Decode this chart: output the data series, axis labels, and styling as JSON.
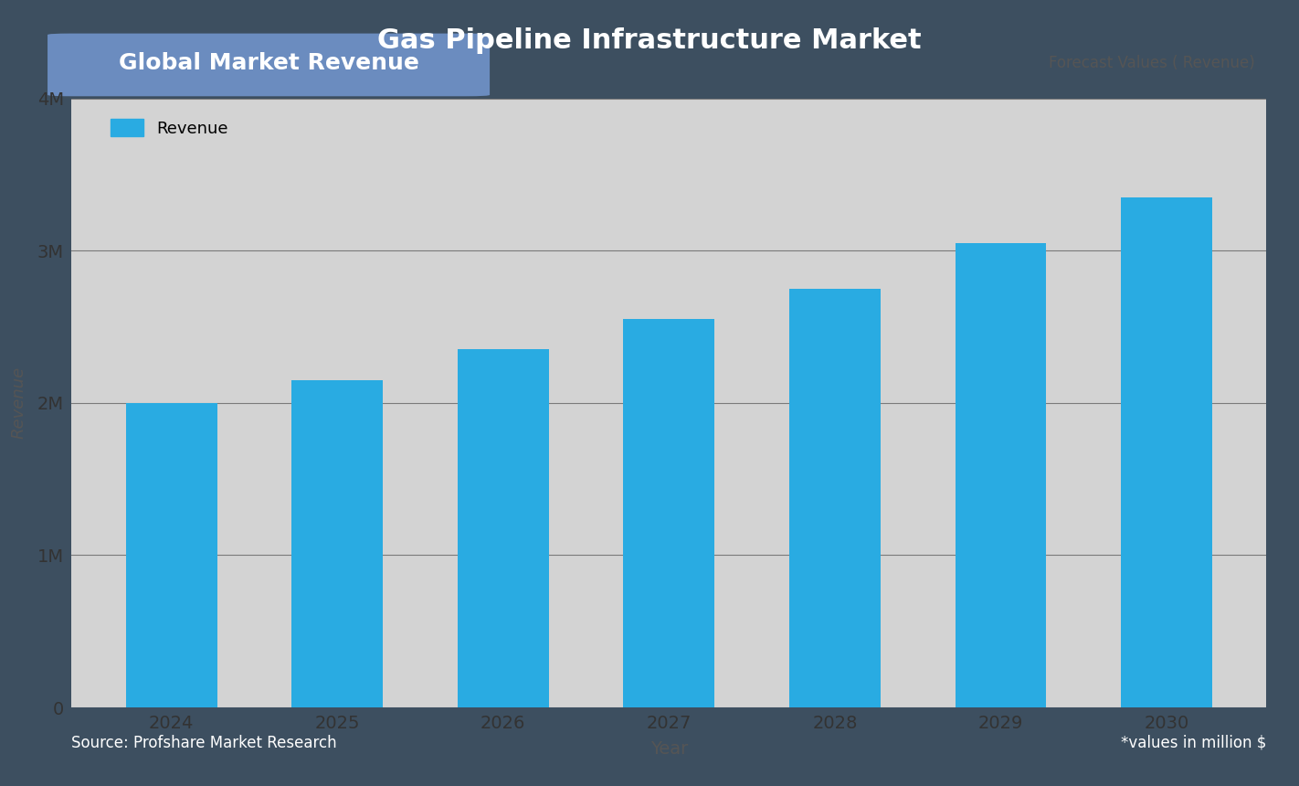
{
  "title": "Gas Pipeline Infrastructure Market",
  "subtitle_left": "Global Market Revenue",
  "subtitle_right": "Forecast Values ( Revenue)",
  "xlabel": "Year",
  "ylabel": "Revenue",
  "source_left": "Source: Profshare Market Research",
  "source_right": "*values in million $",
  "legend_label": "Revenue",
  "years": [
    2024,
    2025,
    2026,
    2027,
    2028,
    2029,
    2030
  ],
  "values": [
    2000000,
    2150000,
    2350000,
    2550000,
    2750000,
    3050000,
    3350000
  ],
  "bar_color": "#29ABE2",
  "background_outer": "#3d4f60",
  "background_inner": "#d3d3d3",
  "title_color": "#ffffff",
  "subtitle_left_bg": "#6b8cbf",
  "subtitle_left_color": "#ffffff",
  "subtitle_right_color": "#555555",
  "axis_label_color": "#555555",
  "tick_color": "#333333",
  "source_color": "#ffffff",
  "grid_color": "#555555",
  "ylim": [
    0,
    4000000
  ],
  "yticks": [
    0,
    1000000,
    2000000,
    3000000,
    4000000
  ],
  "ytick_labels": [
    "0",
    "1M",
    "2M",
    "3M",
    "4M"
  ]
}
